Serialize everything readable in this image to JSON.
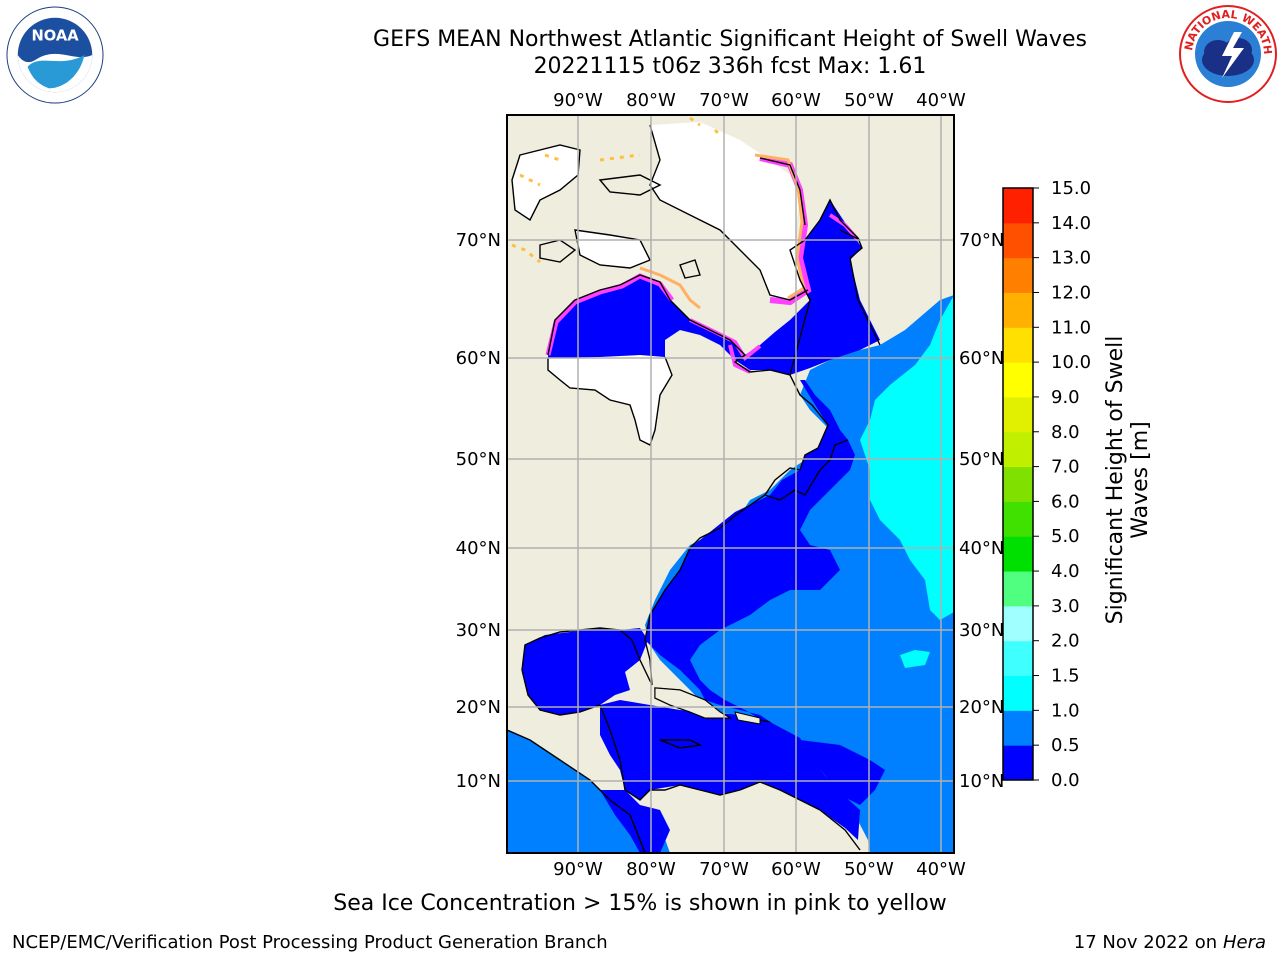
{
  "header": {
    "title_line1": "GEFS MEAN Northwest Atlantic Significant Height of Swell Waves",
    "title_line2": "20221115 t06z 336h fcst   Max: 1.61"
  },
  "logos": {
    "noaa": {
      "icon": "noaa-logo",
      "text": "NOAA",
      "ring_text": "NATIONAL OCEANIC AND ATMOSPHERIC ADMINISTRATION · U.S. DEPARTMENT OF COMMERCE"
    },
    "nws": {
      "icon": "nws-logo",
      "ring_text": "NATIONAL WEATHER SERVICE"
    }
  },
  "map": {
    "lon_labels_top": [
      "90°W",
      "80°W",
      "70°W",
      "60°W",
      "50°W",
      "40°W"
    ],
    "lon_labels_bottom": [
      "90°W",
      "80°W",
      "70°W",
      "60°W",
      "50°W",
      "40°W"
    ],
    "lat_labels_left": [
      "70°N",
      "60°N",
      "50°N",
      "40°N",
      "30°N",
      "20°N",
      "10°N"
    ],
    "lat_labels_right": [
      "70°N",
      "60°N",
      "50°N",
      "40°N",
      "30°N",
      "20°N",
      "10°N"
    ],
    "colors": {
      "land": "#efedde",
      "ocean_low": "#0000ff",
      "ocean_mid": "#0080ff",
      "ocean_high": "#00ffff",
      "ice_white": "#ffffff",
      "ice_edge_pink": "#ff40ff",
      "ice_edge_orange": "#ffb060",
      "grid": "#b0b0b0"
    }
  },
  "colorbar": {
    "title": "Significant Height of Swell Waves [m]",
    "tick_labels": [
      "15.0",
      "14.0",
      "13.0",
      "12.0",
      "11.0",
      "10.0",
      "9.0",
      "8.0",
      "7.0",
      "6.0",
      "5.0",
      "4.0",
      "3.0",
      "2.0",
      "1.5",
      "1.0",
      "0.5",
      "0.0"
    ],
    "colors_bottom_to_top": [
      "#0000ff",
      "#0080ff",
      "#00ffff",
      "#40ffff",
      "#a0ffff",
      "#50ff80",
      "#00e000",
      "#40e000",
      "#80e000",
      "#c0f000",
      "#e0f000",
      "#ffff00",
      "#ffe000",
      "#ffb000",
      "#ff8000",
      "#ff5000",
      "#ff2000",
      "#ff0000"
    ]
  },
  "footer": {
    "sea_ice_note": "Sea Ice Concentration > 15% is shown in pink to yellow",
    "branch": "NCEP/EMC/Verification Post Processing Product Generation Branch",
    "date": "17 Nov 2022 on",
    "host": "Hera"
  }
}
